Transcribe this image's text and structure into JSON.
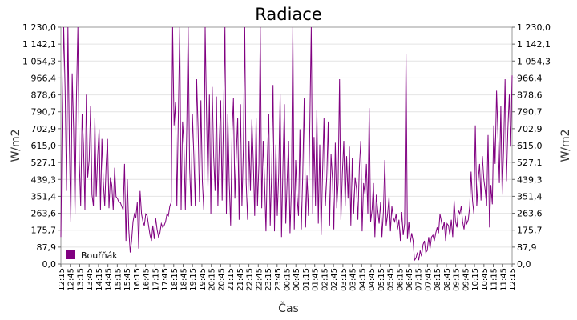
{
  "chart_data": {
    "type": "line",
    "title": "Radiace",
    "xlabel": "Čas",
    "ylabel": "W/m2",
    "ylabel_right": "W/m2",
    "ylim": [
      0,
      1230
    ],
    "yticks": [
      "0,0",
      "87,9",
      "175,7",
      "263,6",
      "351,4",
      "439,3",
      "527,1",
      "615,0",
      "702,9",
      "790,7",
      "878,6",
      "966,4",
      "1 054,3",
      "1 142,1",
      "1 230,0"
    ],
    "xticks": [
      "12:15",
      "12:45",
      "13:15",
      "13:45",
      "14:15",
      "14:45",
      "15:15",
      "15:45",
      "16:15",
      "16:45",
      "17:15",
      "17:45",
      "18:15",
      "18:45",
      "19:15",
      "19:45",
      "20:15",
      "20:45",
      "21:15",
      "21:45",
      "22:15",
      "22:45",
      "23:15",
      "23:45",
      "00:15",
      "00:45",
      "01:15",
      "01:45",
      "02:15",
      "02:45",
      "03:15",
      "03:45",
      "04:15",
      "04:45",
      "05:15",
      "05:45",
      "06:15",
      "06:45",
      "07:15",
      "07:45",
      "08:15",
      "08:45",
      "09:15",
      "09:45",
      "10:15",
      "10:45",
      "11:15",
      "11:45",
      "12:15"
    ],
    "grid": true,
    "legend_position": "bottom-left",
    "color": "#800080",
    "series": [
      {
        "name": "Bouřňák",
        "values": [
          140,
          820,
          1230,
          900,
          380,
          1230,
          620,
          220,
          990,
          700,
          260,
          860,
          1230,
          540,
          300,
          780,
          620,
          280,
          880,
          450,
          540,
          820,
          360,
          300,
          760,
          350,
          560,
          700,
          280,
          650,
          430,
          300,
          520,
          650,
          290,
          450,
          410,
          280,
          500,
          350,
          340,
          320,
          320,
          300,
          280,
          520,
          120,
          440,
          180,
          60,
          120,
          220,
          260,
          240,
          320,
          80,
          380,
          260,
          220,
          200,
          260,
          250,
          200,
          150,
          120,
          200,
          130,
          240,
          180,
          140,
          160,
          210,
          190,
          200,
          220,
          260,
          250,
          300,
          320,
          1230,
          720,
          840,
          300,
          760,
          1230,
          280,
          740,
          620,
          280,
          720,
          1230,
          500,
          300,
          780,
          560,
          300,
          960,
          700,
          320,
          850,
          430,
          280,
          1230,
          760,
          400,
          880,
          260,
          920,
          560,
          380,
          870,
          300,
          640,
          850,
          330,
          780,
          1230,
          260,
          780,
          430,
          200,
          690,
          860,
          340,
          560,
          760,
          230,
          830,
          300,
          600,
          1230,
          420,
          230,
          640,
          380,
          750,
          540,
          250,
          760,
          300,
          520,
          1230,
          290,
          640,
          430,
          170,
          560,
          780,
          200,
          480,
          930,
          170,
          620,
          250,
          470,
          880,
          140,
          510,
          830,
          210,
          440,
          640,
          160,
          400,
          1230,
          180,
          540,
          350,
          250,
          700,
          180,
          470,
          860,
          190,
          460,
          250,
          720,
          1230,
          260,
          660,
          300,
          800,
          210,
          620,
          150,
          470,
          760,
          300,
          460,
          740,
          200,
          570,
          440,
          180,
          630,
          290,
          420,
          960,
          230,
          470,
          640,
          300,
          560,
          340,
          610,
          200,
          550,
          260,
          450,
          390,
          230,
          500,
          640,
          170,
          420,
          360,
          520,
          260,
          810,
          220,
          280,
          420,
          140,
          360,
          280,
          210,
          320,
          140,
          270,
          540,
          200,
          260,
          350,
          170,
          300,
          240,
          220,
          260,
          180,
          230,
          120,
          270,
          150,
          210,
          1090,
          130,
          220,
          110,
          160,
          120,
          20,
          30,
          60,
          20,
          70,
          40,
          100,
          120,
          60,
          70,
          140,
          80,
          140,
          150,
          120,
          160,
          190,
          160,
          260,
          220,
          180,
          220,
          120,
          210,
          200,
          150,
          230,
          140,
          330,
          220,
          190,
          280,
          260,
          300,
          220,
          180,
          250,
          210,
          230,
          300,
          480,
          330,
          260,
          720,
          300,
          430,
          520,
          330,
          560,
          440,
          380,
          300,
          670,
          190,
          410,
          310,
          720,
          520,
          900,
          660,
          420,
          820,
          360,
          600,
          960,
          430,
          700,
          880,
          610,
          980
        ]
      }
    ]
  }
}
